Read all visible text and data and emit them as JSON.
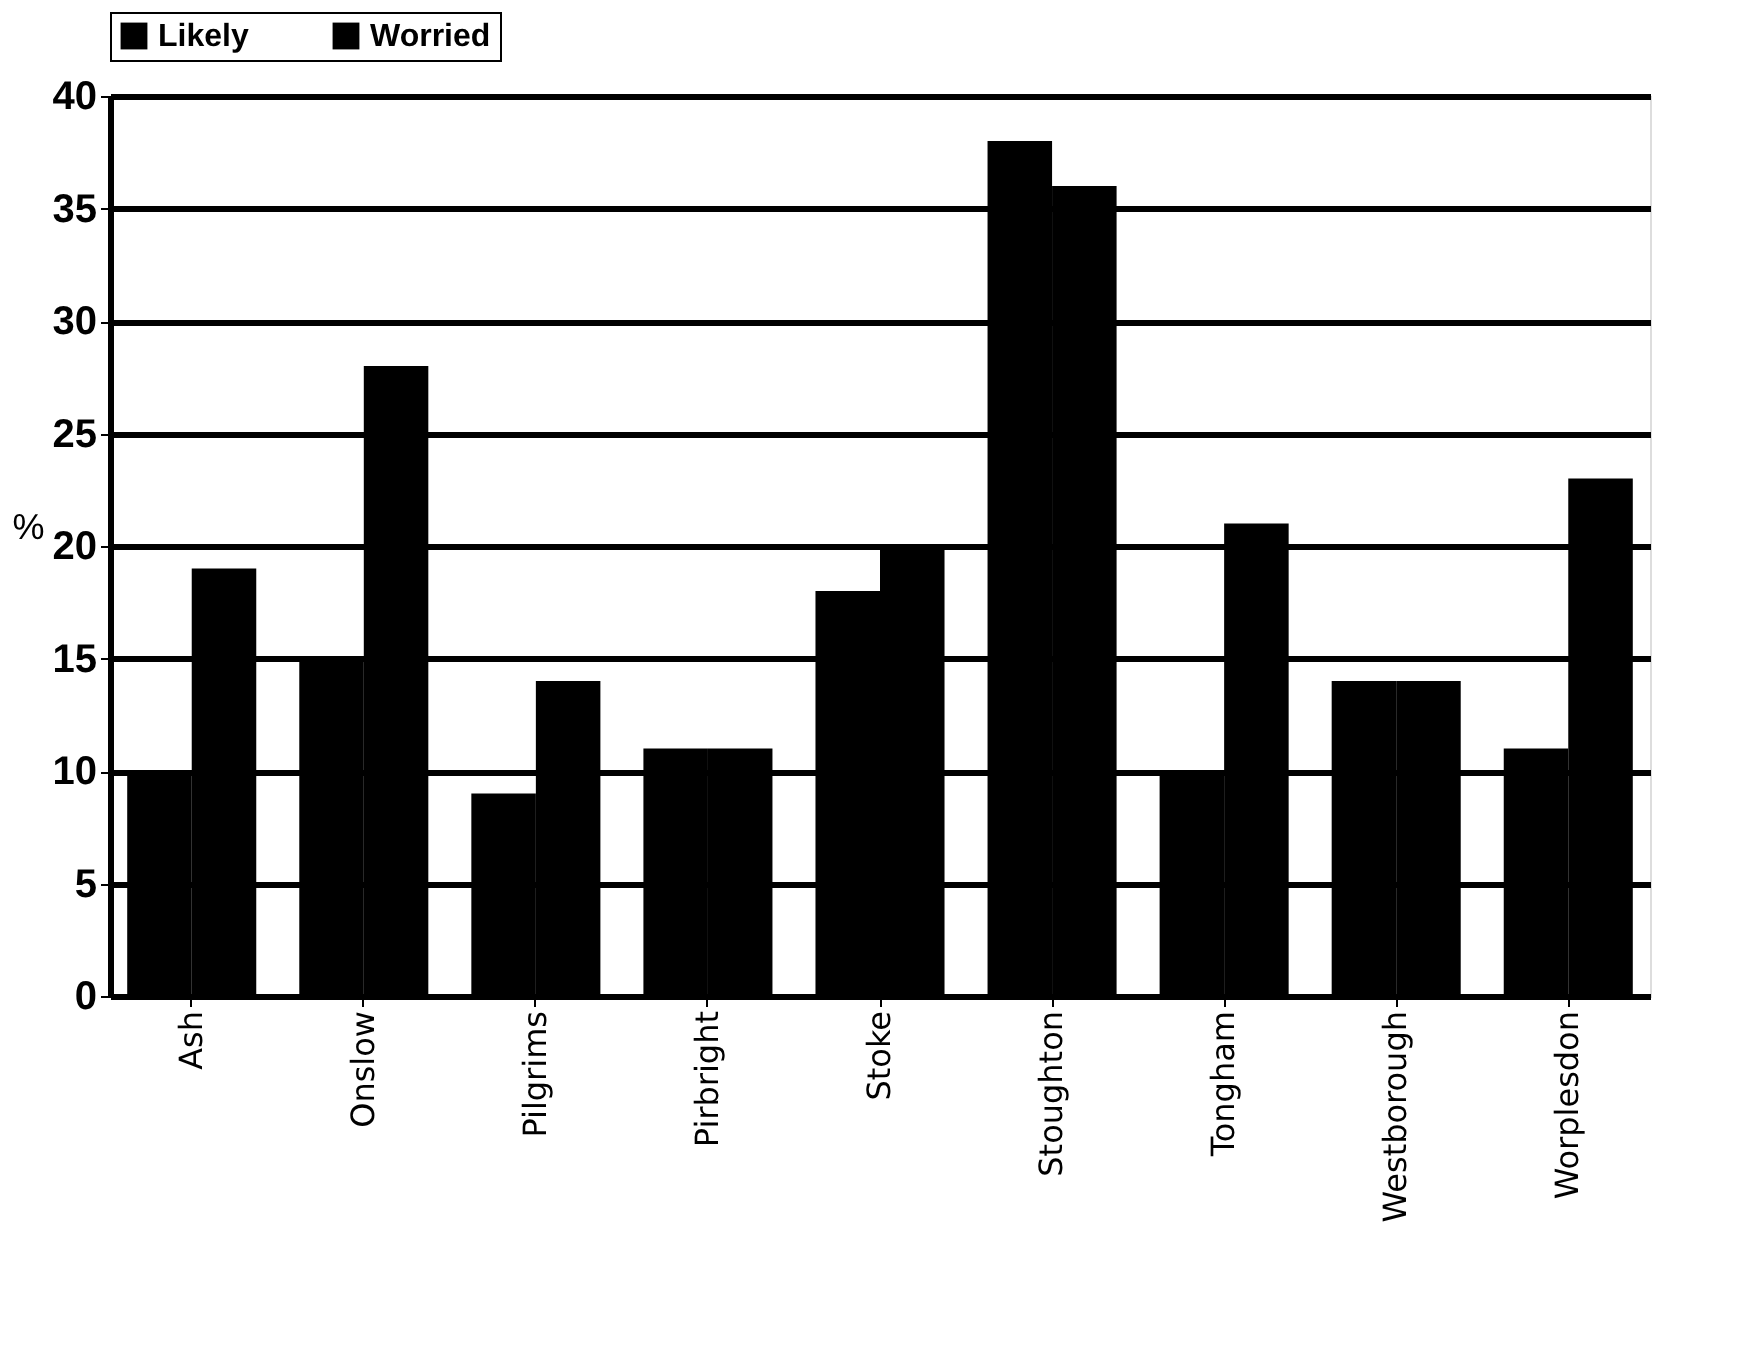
{
  "chart_data": {
    "type": "bar",
    "ylabel": "%",
    "categories": [
      "Ash",
      "Onslow",
      "Pilgrims",
      "Pirbright",
      "Stoke",
      "Stoughton",
      "Tongham",
      "Westborough",
      "Worplesdon"
    ],
    "series": [
      {
        "name": "Likely",
        "color": "#000000",
        "values": [
          10,
          15,
          9,
          11,
          18,
          38,
          10,
          14,
          11
        ]
      },
      {
        "name": "Worried",
        "color": "#000000",
        "values": [
          19,
          28,
          14,
          11,
          20,
          36,
          21,
          14,
          23
        ]
      }
    ],
    "ylim": [
      0,
      40
    ],
    "yticks": [
      0,
      5,
      10,
      15,
      20,
      25,
      30,
      35,
      40
    ],
    "grid": "y",
    "legend": "top"
  }
}
